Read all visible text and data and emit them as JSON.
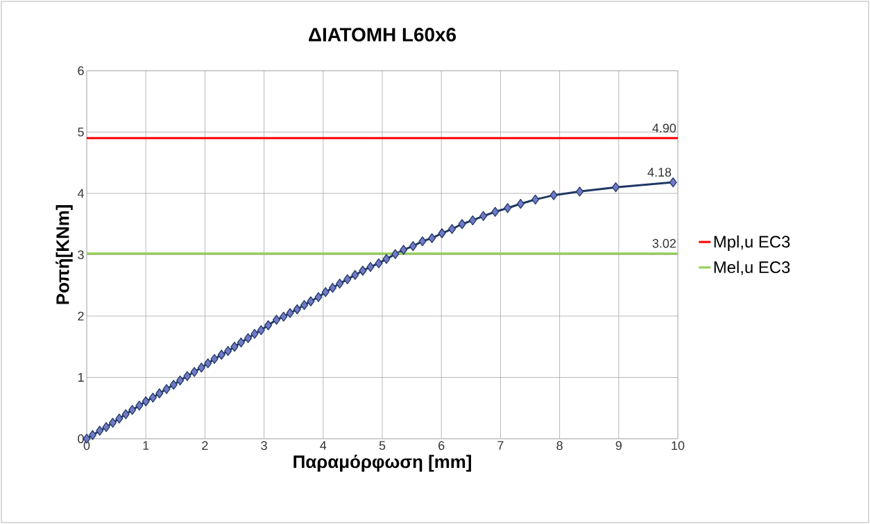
{
  "chart_data": {
    "type": "line",
    "title": "ΔΙΑΤΟΜΗ L60x6",
    "xlabel": "Παραμόρφωση [mm]",
    "ylabel": "Ροπή[KNm]",
    "xlim": [
      0,
      10
    ],
    "ylim": [
      0,
      6
    ],
    "xticks": [
      0,
      1,
      2,
      3,
      4,
      5,
      6,
      7,
      8,
      9,
      10
    ],
    "yticks": [
      0,
      1,
      2,
      3,
      4,
      5,
      6
    ],
    "grid": true,
    "legend": "right",
    "series": [
      {
        "color": "#1f3864",
        "marker": "diamond",
        "x": [
          0,
          0.1,
          0.22,
          0.33,
          0.44,
          0.55,
          0.66,
          0.77,
          0.89,
          1.0,
          1.12,
          1.23,
          1.35,
          1.47,
          1.58,
          1.7,
          1.82,
          1.94,
          2.05,
          2.16,
          2.28,
          2.39,
          2.5,
          2.61,
          2.73,
          2.84,
          2.95,
          3.07,
          3.21,
          3.33,
          3.44,
          3.56,
          3.68,
          3.79,
          3.92,
          4.04,
          4.16,
          4.28,
          4.41,
          4.54,
          4.67,
          4.8,
          4.94,
          5.07,
          5.22,
          5.36,
          5.52,
          5.68,
          5.84,
          6.01,
          6.18,
          6.35,
          6.53,
          6.71,
          6.91,
          7.12,
          7.34,
          7.59,
          7.9,
          8.34,
          8.95,
          9.92
        ],
        "values": [
          0,
          0.06,
          0.13,
          0.19,
          0.26,
          0.33,
          0.4,
          0.47,
          0.54,
          0.61,
          0.67,
          0.74,
          0.81,
          0.88,
          0.95,
          1.02,
          1.09,
          1.16,
          1.23,
          1.3,
          1.37,
          1.43,
          1.5,
          1.57,
          1.64,
          1.71,
          1.77,
          1.85,
          1.94,
          1.99,
          2.05,
          2.11,
          2.18,
          2.24,
          2.31,
          2.39,
          2.46,
          2.53,
          2.6,
          2.67,
          2.74,
          2.8,
          2.86,
          2.93,
          3.01,
          3.08,
          3.14,
          3.22,
          3.27,
          3.35,
          3.42,
          3.5,
          3.56,
          3.63,
          3.7,
          3.76,
          3.83,
          3.9,
          3.97,
          4.03,
          4.1,
          4.18
        ],
        "value_labels": [
          null,
          null,
          null,
          null,
          null,
          null,
          null,
          null,
          null,
          null,
          null,
          null,
          null,
          null,
          null,
          null,
          null,
          null,
          null,
          null,
          null,
          null,
          null,
          null,
          null,
          null,
          null,
          null,
          null,
          null,
          null,
          null,
          null,
          null,
          null,
          null,
          null,
          null,
          null,
          null,
          null,
          null,
          null,
          null,
          null,
          null,
          null,
          null,
          null,
          null,
          null,
          null,
          null,
          null,
          null,
          null,
          null,
          null,
          null,
          null,
          null,
          "4.18"
        ]
      },
      {
        "name": "Mpl,u EC3",
        "color": "#ff0000",
        "marker": "none",
        "x": [
          0,
          10
        ],
        "values": [
          4.9,
          4.9
        ],
        "value_labels": [
          null,
          "4.90"
        ]
      },
      {
        "name": "Mel,u EC3",
        "color": "#92d050",
        "marker": "none",
        "x": [
          0,
          10
        ],
        "values": [
          3.02,
          3.02
        ],
        "value_labels": [
          null,
          "3.02"
        ]
      }
    ]
  }
}
